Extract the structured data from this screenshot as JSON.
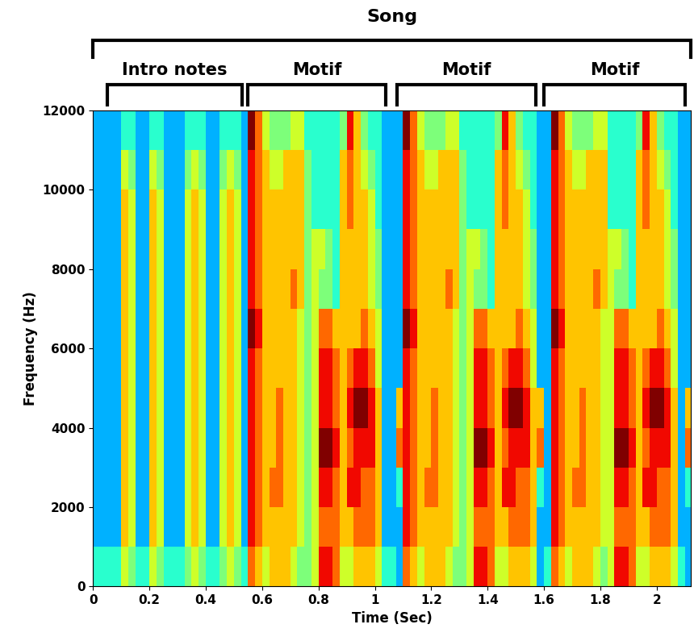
{
  "chart_data": {
    "type": "heatmap",
    "x_label": "Time (Sec)",
    "y_label": "Frequency (Hz)",
    "xlim": [
      0,
      2.12
    ],
    "ylim": [
      0,
      12000
    ],
    "xticks": [
      0,
      0.2,
      0.4,
      0.6,
      0.8,
      1,
      1.2,
      1.4,
      1.6,
      1.8,
      2
    ],
    "yticks": [
      0,
      2000,
      4000,
      6000,
      8000,
      10000,
      12000
    ],
    "x": [
      0.0125,
      0.0375,
      0.0625,
      0.0875,
      0.1125,
      0.1375,
      0.1625,
      0.1875,
      0.2125,
      0.2375,
      0.2625,
      0.2875,
      0.3125,
      0.3375,
      0.3625,
      0.3875,
      0.4125,
      0.4375,
      0.4625,
      0.4875,
      0.5125,
      0.5375,
      0.5625,
      0.5875,
      0.6125,
      0.6375,
      0.6625,
      0.6875,
      0.7125,
      0.7375,
      0.7625,
      0.7875,
      0.8125,
      0.8375,
      0.8625,
      0.8875,
      0.9125,
      0.9375,
      0.9625,
      0.9875,
      1.0125,
      1.0375,
      1.0625,
      1.0875,
      1.1125,
      1.1375,
      1.1625,
      1.1875,
      1.2125,
      1.2375,
      1.2625,
      1.2875,
      1.3125,
      1.3375,
      1.3625,
      1.3875,
      1.4125,
      1.4375,
      1.4625,
      1.4875,
      1.5125,
      1.5375,
      1.5625,
      1.5875,
      1.6125,
      1.6375,
      1.6625,
      1.6875,
      1.7125,
      1.7375,
      1.7625,
      1.7875,
      1.8125,
      1.8375,
      1.8625,
      1.8875,
      1.9125,
      1.9375,
      1.9625,
      1.9875,
      2.0125,
      2.0375,
      2.0625,
      2.0875,
      2.1125
    ],
    "y": [
      500,
      1500,
      2500,
      3500,
      4500,
      5500,
      6500,
      7500,
      8500,
      9500,
      10500,
      11500
    ],
    "cells": [
      [
        3,
        3,
        3,
        3,
        5,
        4,
        3,
        3,
        5,
        4,
        3,
        3,
        3,
        4,
        5,
        4,
        3,
        3,
        4,
        5,
        4,
        3,
        7,
        6,
        5,
        6,
        6,
        6,
        5,
        4,
        4,
        5,
        8,
        8,
        7,
        5,
        5,
        6,
        6,
        6,
        5,
        3,
        3,
        2,
        7,
        6,
        5,
        6,
        6,
        6,
        5,
        4,
        4,
        5,
        8,
        8,
        7,
        5,
        5,
        6,
        6,
        6,
        5,
        2,
        3,
        7,
        6,
        5,
        6,
        6,
        6,
        5,
        4,
        5,
        8,
        8,
        7,
        5,
        5,
        6,
        6,
        6,
        5,
        3,
        2
      ],
      [
        2,
        2,
        2,
        2,
        6,
        5,
        2,
        2,
        6,
        5,
        2,
        2,
        2,
        5,
        6,
        5,
        2,
        2,
        5,
        6,
        5,
        2,
        8,
        7,
        6,
        6,
        6,
        6,
        6,
        5,
        4,
        5,
        7,
        7,
        7,
        6,
        6,
        7,
        7,
        7,
        6,
        2,
        2,
        2,
        8,
        7,
        6,
        6,
        6,
        6,
        6,
        5,
        4,
        5,
        7,
        7,
        7,
        6,
        6,
        7,
        7,
        7,
        6,
        2,
        2,
        8,
        7,
        6,
        6,
        6,
        6,
        6,
        5,
        5,
        7,
        7,
        7,
        6,
        6,
        7,
        7,
        7,
        6,
        2,
        2
      ],
      [
        2,
        2,
        2,
        2,
        6,
        5,
        2,
        2,
        6,
        5,
        2,
        2,
        2,
        5,
        6,
        5,
        2,
        2,
        5,
        6,
        5,
        2,
        8,
        7,
        6,
        7,
        7,
        6,
        6,
        5,
        4,
        5,
        8,
        8,
        7,
        6,
        8,
        8,
        7,
        7,
        6,
        2,
        2,
        3,
        8,
        7,
        6,
        7,
        7,
        6,
        6,
        5,
        4,
        5,
        8,
        8,
        7,
        6,
        8,
        8,
        7,
        7,
        6,
        3,
        2,
        8,
        7,
        6,
        7,
        7,
        6,
        6,
        5,
        5,
        8,
        8,
        7,
        6,
        8,
        8,
        7,
        7,
        6,
        2,
        3
      ],
      [
        2,
        2,
        2,
        2,
        6,
        5,
        2,
        2,
        6,
        5,
        2,
        2,
        2,
        5,
        6,
        5,
        2,
        2,
        5,
        6,
        5,
        2,
        8,
        7,
        6,
        6,
        7,
        6,
        6,
        5,
        4,
        5,
        9,
        9,
        8,
        6,
        7,
        8,
        8,
        8,
        6,
        2,
        2,
        7,
        8,
        7,
        6,
        6,
        7,
        6,
        6,
        5,
        4,
        5,
        9,
        9,
        8,
        6,
        7,
        8,
        8,
        8,
        6,
        7,
        2,
        8,
        7,
        6,
        6,
        7,
        6,
        6,
        5,
        5,
        9,
        9,
        8,
        6,
        7,
        8,
        8,
        8,
        6,
        2,
        7
      ],
      [
        2,
        2,
        2,
        2,
        6,
        5,
        2,
        2,
        6,
        5,
        2,
        2,
        2,
        5,
        6,
        5,
        2,
        2,
        5,
        6,
        5,
        2,
        8,
        7,
        6,
        6,
        7,
        6,
        6,
        5,
        4,
        5,
        8,
        8,
        7,
        6,
        8,
        9,
        9,
        8,
        6,
        2,
        2,
        6,
        8,
        7,
        6,
        6,
        7,
        6,
        6,
        5,
        4,
        5,
        8,
        8,
        7,
        6,
        8,
        9,
        9,
        8,
        6,
        6,
        2,
        8,
        7,
        6,
        6,
        7,
        6,
        6,
        5,
        5,
        8,
        8,
        7,
        6,
        8,
        9,
        9,
        8,
        6,
        2,
        6
      ],
      [
        2,
        2,
        2,
        2,
        6,
        5,
        2,
        2,
        6,
        5,
        2,
        2,
        2,
        5,
        6,
        5,
        2,
        2,
        5,
        6,
        5,
        2,
        8,
        7,
        6,
        6,
        6,
        6,
        6,
        5,
        4,
        5,
        8,
        8,
        7,
        6,
        7,
        8,
        8,
        7,
        5,
        2,
        2,
        2,
        8,
        7,
        6,
        6,
        6,
        6,
        6,
        5,
        4,
        5,
        8,
        8,
        7,
        6,
        7,
        8,
        8,
        7,
        5,
        2,
        2,
        8,
        7,
        6,
        6,
        6,
        6,
        6,
        5,
        5,
        8,
        8,
        7,
        6,
        7,
        8,
        8,
        7,
        5,
        2,
        2
      ],
      [
        2,
        2,
        2,
        2,
        6,
        5,
        2,
        2,
        6,
        5,
        2,
        2,
        2,
        5,
        6,
        5,
        2,
        2,
        5,
        6,
        5,
        2,
        9,
        8,
        6,
        6,
        6,
        6,
        6,
        5,
        4,
        5,
        7,
        7,
        6,
        6,
        6,
        6,
        7,
        6,
        5,
        2,
        2,
        2,
        9,
        8,
        6,
        6,
        6,
        6,
        6,
        5,
        4,
        5,
        7,
        7,
        6,
        6,
        6,
        6,
        7,
        6,
        5,
        2,
        2,
        9,
        8,
        6,
        6,
        6,
        6,
        6,
        5,
        5,
        7,
        7,
        6,
        6,
        6,
        6,
        7,
        6,
        5,
        2,
        2
      ],
      [
        2,
        2,
        2,
        2,
        6,
        5,
        2,
        2,
        6,
        5,
        2,
        2,
        2,
        5,
        6,
        5,
        2,
        2,
        5,
        6,
        5,
        2,
        8,
        7,
        6,
        6,
        6,
        6,
        7,
        6,
        4,
        5,
        4,
        4,
        3,
        6,
        6,
        6,
        6,
        5,
        4,
        2,
        2,
        2,
        8,
        7,
        6,
        6,
        6,
        6,
        7,
        6,
        4,
        5,
        4,
        4,
        3,
        6,
        6,
        6,
        6,
        5,
        4,
        2,
        2,
        8,
        7,
        6,
        6,
        6,
        6,
        7,
        6,
        5,
        4,
        4,
        3,
        6,
        6,
        6,
        6,
        5,
        4,
        2,
        2
      ],
      [
        2,
        2,
        2,
        2,
        6,
        5,
        2,
        2,
        6,
        5,
        2,
        2,
        2,
        5,
        6,
        5,
        2,
        2,
        5,
        6,
        5,
        2,
        8,
        7,
        6,
        6,
        6,
        6,
        6,
        6,
        4,
        5,
        5,
        4,
        3,
        6,
        6,
        6,
        6,
        5,
        4,
        2,
        2,
        2,
        8,
        7,
        6,
        6,
        6,
        6,
        6,
        6,
        4,
        5,
        5,
        4,
        3,
        6,
        6,
        6,
        6,
        5,
        4,
        2,
        2,
        8,
        7,
        6,
        6,
        6,
        6,
        6,
        6,
        5,
        5,
        4,
        3,
        6,
        6,
        6,
        6,
        5,
        4,
        2,
        2
      ],
      [
        2,
        2,
        2,
        2,
        6,
        5,
        2,
        2,
        6,
        5,
        2,
        2,
        2,
        5,
        6,
        5,
        2,
        2,
        5,
        6,
        5,
        2,
        8,
        7,
        6,
        6,
        6,
        6,
        6,
        6,
        4,
        3,
        3,
        3,
        3,
        6,
        7,
        6,
        6,
        5,
        3,
        2,
        2,
        2,
        8,
        7,
        6,
        6,
        6,
        6,
        6,
        6,
        4,
        3,
        3,
        3,
        3,
        6,
        7,
        6,
        6,
        5,
        3,
        2,
        2,
        8,
        7,
        6,
        6,
        6,
        6,
        6,
        6,
        3,
        3,
        3,
        3,
        6,
        7,
        6,
        6,
        5,
        3,
        2,
        2
      ],
      [
        2,
        2,
        2,
        2,
        5,
        4,
        2,
        2,
        5,
        4,
        2,
        2,
        2,
        4,
        5,
        4,
        2,
        2,
        4,
        5,
        4,
        2,
        8,
        7,
        6,
        5,
        5,
        6,
        6,
        6,
        4,
        3,
        3,
        3,
        3,
        6,
        7,
        6,
        5,
        4,
        3,
        2,
        2,
        2,
        8,
        7,
        6,
        5,
        5,
        6,
        6,
        6,
        4,
        3,
        3,
        3,
        3,
        6,
        7,
        6,
        5,
        4,
        3,
        2,
        2,
        8,
        7,
        6,
        5,
        5,
        6,
        6,
        6,
        3,
        3,
        3,
        3,
        6,
        7,
        6,
        5,
        4,
        3,
        2,
        2
      ],
      [
        2,
        2,
        2,
        2,
        3,
        3,
        2,
        2,
        3,
        3,
        2,
        2,
        2,
        3,
        3,
        3,
        2,
        2,
        3,
        3,
        3,
        2,
        9,
        7,
        5,
        4,
        4,
        4,
        5,
        5,
        3,
        3,
        3,
        3,
        3,
        4,
        8,
        6,
        4,
        3,
        3,
        2,
        2,
        2,
        9,
        7,
        5,
        4,
        4,
        4,
        5,
        5,
        3,
        3,
        3,
        3,
        3,
        4,
        8,
        6,
        4,
        3,
        3,
        2,
        2,
        9,
        7,
        5,
        4,
        4,
        4,
        5,
        5,
        3,
        3,
        3,
        3,
        4,
        8,
        6,
        4,
        3,
        3,
        2,
        2
      ]
    ],
    "brackets": {
      "text": "Song",
      "start": 0,
      "end": 2.12,
      "parts": [
        {
          "text": "Intro notes",
          "start": 0.05,
          "end": 0.53
        },
        {
          "text": "Motif",
          "start": 0.55,
          "end": 1.04
        },
        {
          "text": "Motif",
          "start": 1.08,
          "end": 1.57
        },
        {
          "text": "Motif",
          "start": 1.6,
          "end": 2.1
        }
      ]
    }
  }
}
